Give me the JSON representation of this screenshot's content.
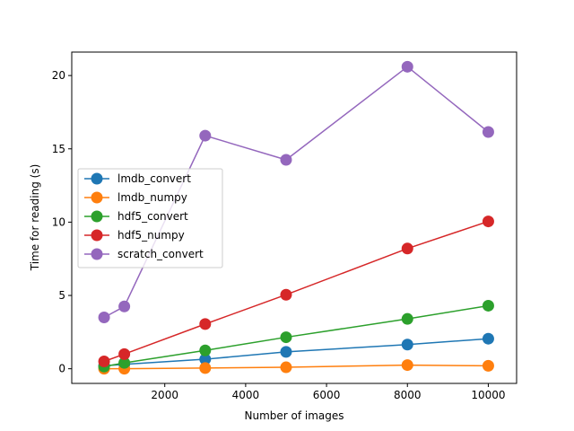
{
  "chart_data": {
    "type": "line",
    "xlabel": "Number of images",
    "ylabel": "Time for reading (s)",
    "x": [
      500,
      1000,
      3000,
      5000,
      8000,
      10000
    ],
    "xlim": [
      -300,
      10700
    ],
    "ylim": [
      -1.0,
      21.6
    ],
    "xticks": [
      2000,
      4000,
      6000,
      8000,
      10000
    ],
    "xtick_labels": [
      "2000",
      "4000",
      "6000",
      "8000",
      "10000"
    ],
    "yticks": [
      0,
      5,
      10,
      15,
      20
    ],
    "ytick_labels": [
      "0",
      "5",
      "10",
      "15",
      "20"
    ],
    "grid": false,
    "legend_position": "center-left",
    "series": [
      {
        "name": "lmdb_convert",
        "color": "#1f77b4",
        "values": [
          0.2,
          0.3,
          0.65,
          1.15,
          1.65,
          2.05
        ]
      },
      {
        "name": "lmdb_numpy",
        "color": "#ff7f0e",
        "values": [
          0.0,
          0.0,
          0.05,
          0.1,
          0.25,
          0.2
        ]
      },
      {
        "name": "hdf5_convert",
        "color": "#2ca02c",
        "values": [
          0.15,
          0.4,
          1.25,
          2.15,
          3.4,
          4.3
        ]
      },
      {
        "name": "hdf5_numpy",
        "color": "#d62728",
        "values": [
          0.5,
          1.0,
          3.05,
          5.05,
          8.2,
          10.05
        ]
      },
      {
        "name": "scratch_convert",
        "color": "#9467bd",
        "values": [
          3.5,
          4.25,
          15.9,
          14.25,
          20.6,
          16.15
        ]
      }
    ]
  }
}
